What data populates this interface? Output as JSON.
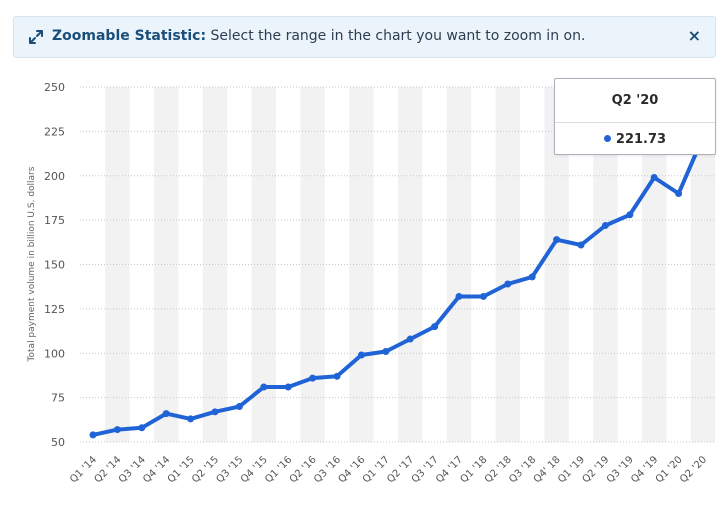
{
  "banner": {
    "title": "Zoomable Statistic:",
    "message": "Select the range in the chart you want to zoom in on.",
    "close_label": "×",
    "icon": "expand-arrows-icon"
  },
  "tooltip": {
    "category": "Q2 '20",
    "value": "221.73"
  },
  "colors": {
    "line": "#1f63d6",
    "banner_bg": "#eaf4fa",
    "stripe": "#f2f2f2"
  },
  "chart_data": {
    "type": "line",
    "ylabel": "Total payment volume in billion U.S. dollars",
    "xlabel": "",
    "ylim": [
      50,
      250
    ],
    "yticks": [
      50,
      75,
      100,
      125,
      150,
      175,
      200,
      225,
      250
    ],
    "grid": true,
    "categories": [
      "Q1 '14",
      "Q2 '14",
      "Q3 '14",
      "Q4 '14",
      "Q1 '15",
      "Q2 '15",
      "Q3 '15",
      "Q4 '15",
      "Q1 '16",
      "Q2 '16",
      "Q3 '16",
      "Q4 '16",
      "Q1 '17",
      "Q2 '17",
      "Q3 '17",
      "Q4 '17",
      "Q1 '18",
      "Q2 '18",
      "Q3 '18",
      "Q4' 18",
      "Q1 '19",
      "Q2 '19",
      "Q3 '19",
      "Q4 '19",
      "Q1 '20",
      "Q2 '20"
    ],
    "series": [
      {
        "values": [
          54,
          57,
          58,
          66,
          63,
          67,
          70,
          81,
          81,
          86,
          87,
          99,
          101,
          108,
          115,
          132,
          132,
          139,
          143,
          164,
          161,
          172,
          178,
          199,
          190,
          221.73
        ]
      }
    ]
  }
}
